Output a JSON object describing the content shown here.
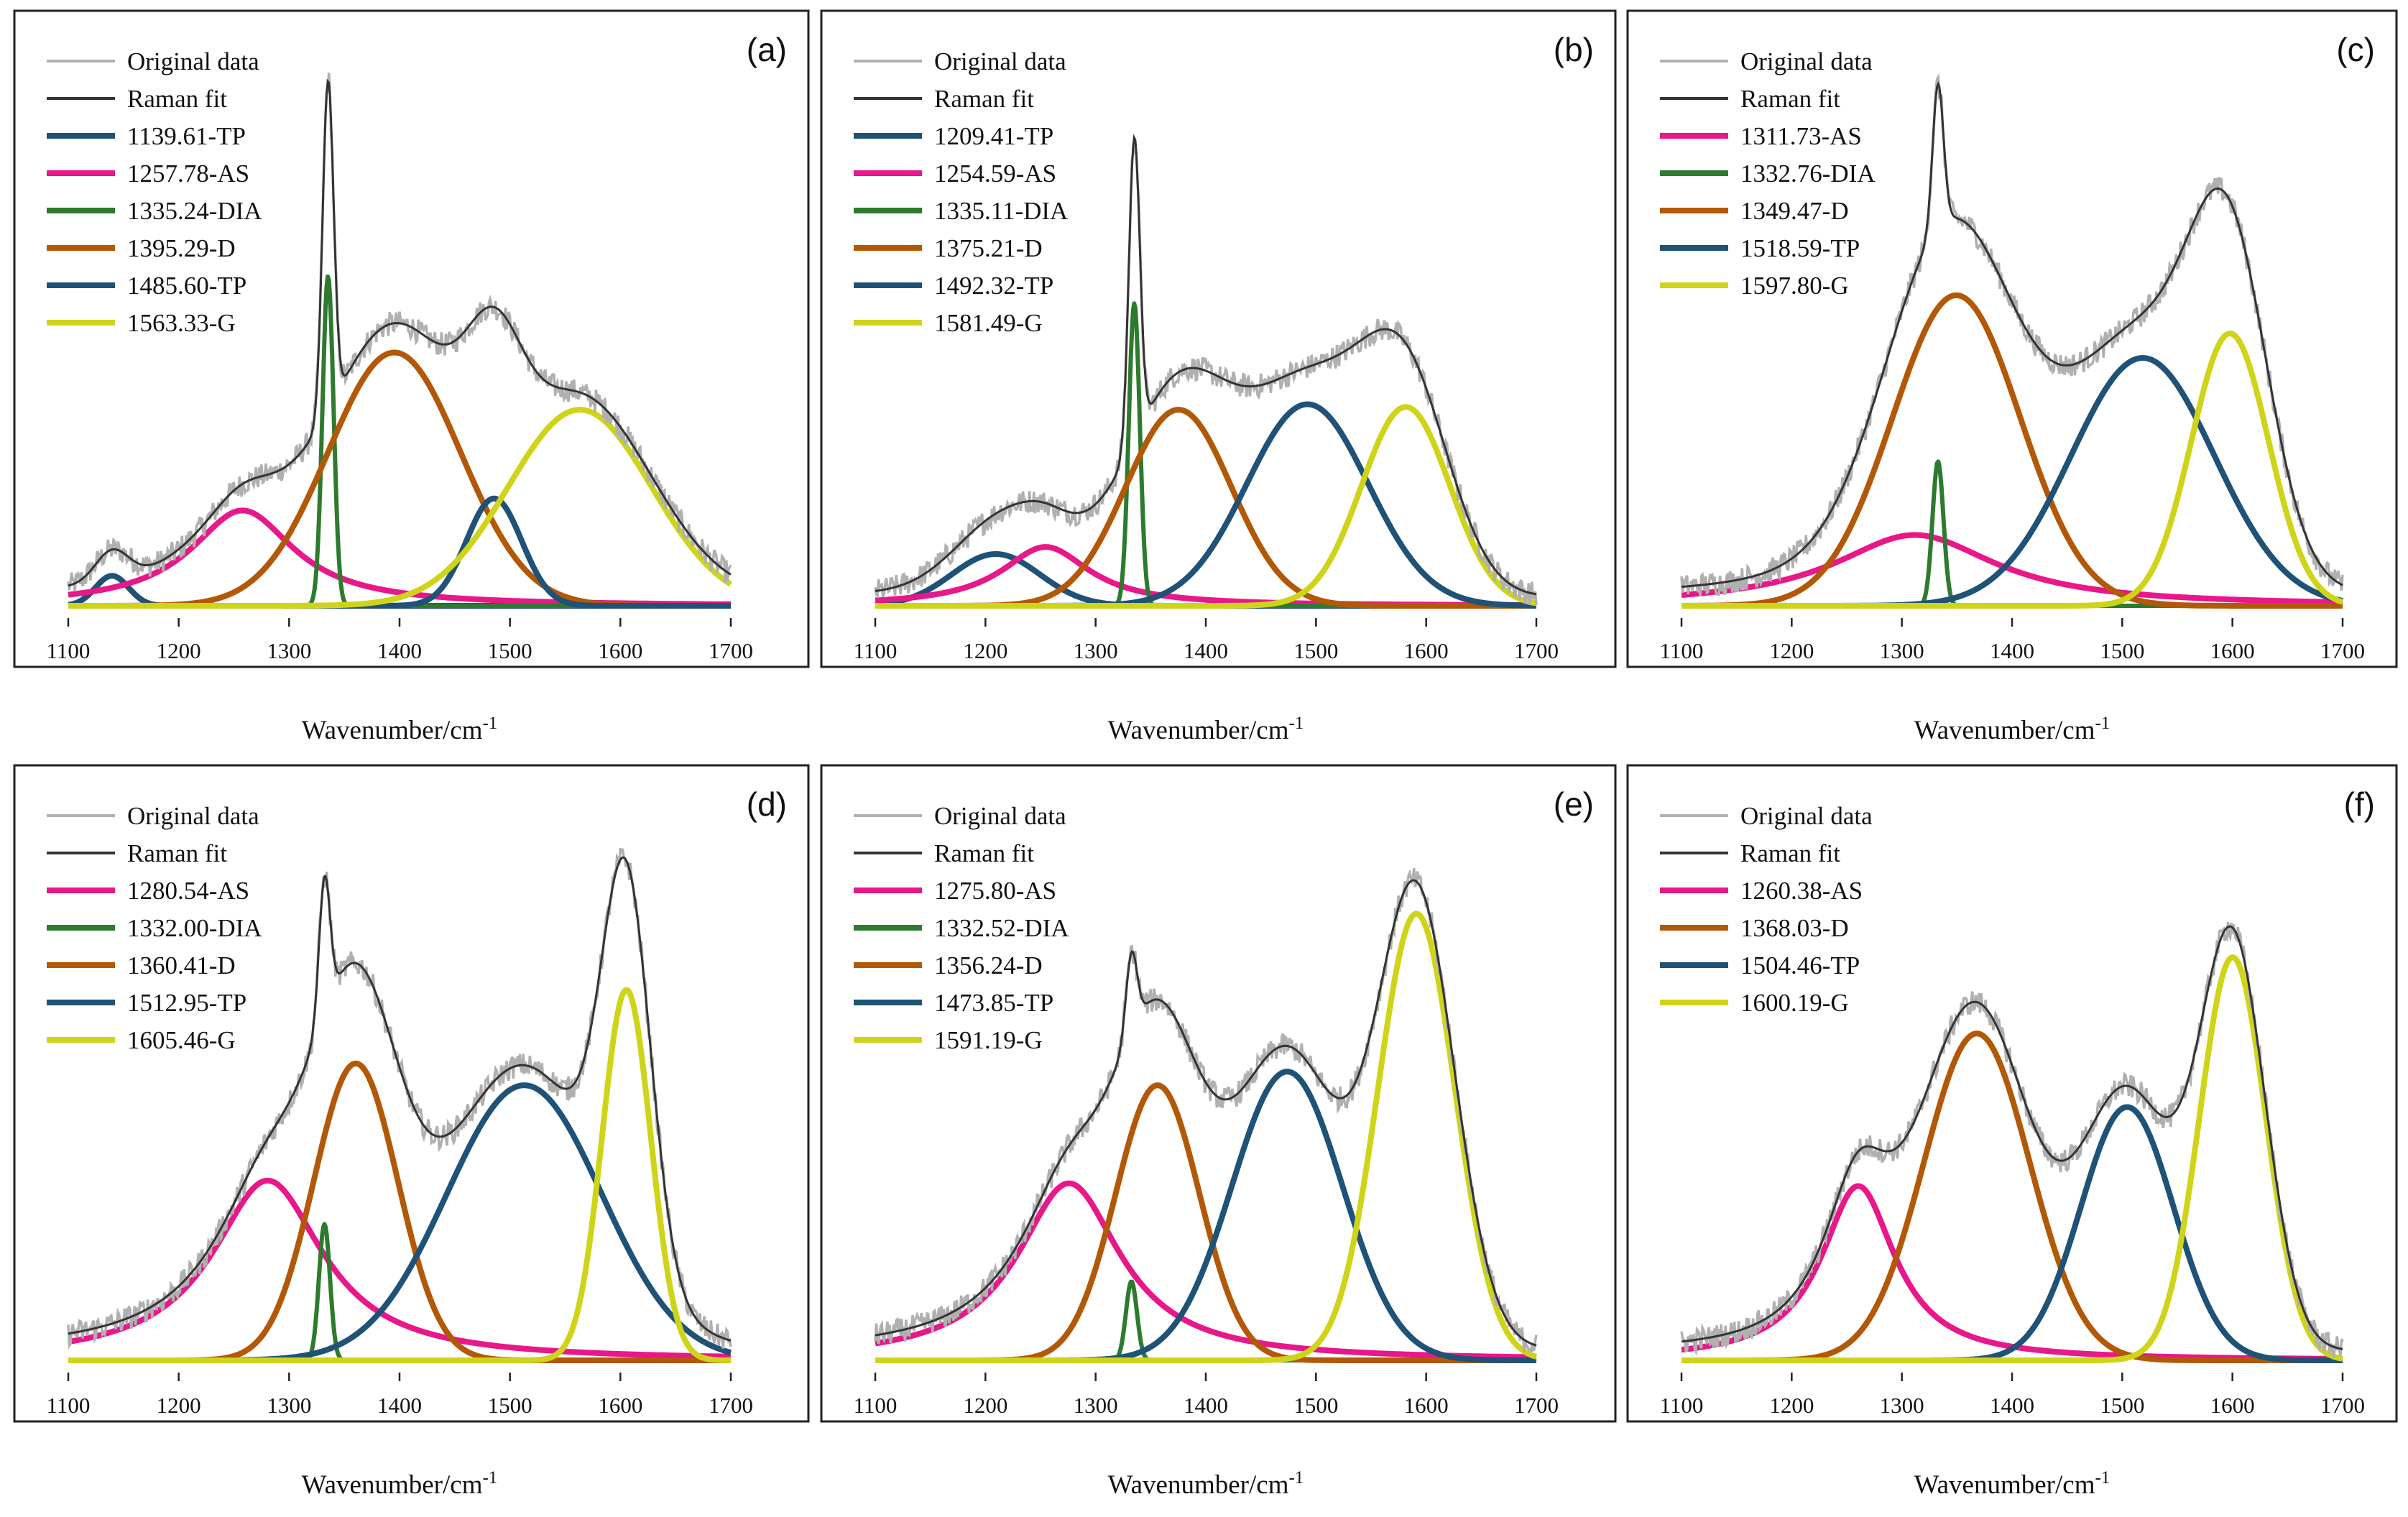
{
  "figure": {
    "xlabel_base": "Wavenumber/cm",
    "xlabel_sup": "-1"
  },
  "legend_common": {
    "original": "Original data",
    "fit": "Raman fit"
  },
  "colors": {
    "original": "#b0b0b0",
    "fit": "#333333",
    "TP": "#1f5276",
    "AS": "#e8178a",
    "DIA": "#2e7a2e",
    "D": "#b35806",
    "G": "#cfd419"
  },
  "chart_data": [
    {
      "label": "(a)",
      "type": "line",
      "xlabel": "Wavenumber/cm-1",
      "xlim": [
        1100,
        1700
      ],
      "ylim": [
        0,
        1
      ],
      "xticks": [
        1100,
        1200,
        1300,
        1400,
        1500,
        1600,
        1700
      ],
      "peaks": [
        {
          "name": "1139.61-TP",
          "kind": "TP",
          "center": 1139.61,
          "height": 0.055,
          "width": 15
        },
        {
          "name": "1257.78-AS",
          "kind": "AS",
          "center": 1257.78,
          "height": 0.175,
          "width": 70
        },
        {
          "name": "1335.24-DIA",
          "kind": "DIA",
          "center": 1335.24,
          "height": 0.605,
          "width": 5
        },
        {
          "name": "1395.29-D",
          "kind": "D",
          "center": 1395.29,
          "height": 0.465,
          "width": 60
        },
        {
          "name": "1485.60-TP",
          "kind": "TP",
          "center": 1485.6,
          "height": 0.197,
          "width": 25
        },
        {
          "name": "1563.33-G",
          "kind": "G",
          "center": 1563.33,
          "height": 0.36,
          "width": 65
        }
      ]
    },
    {
      "label": "(b)",
      "type": "line",
      "xlabel": "Wavenumber/cm-1",
      "xlim": [
        1100,
        1700
      ],
      "ylim": [
        0,
        1
      ],
      "xticks": [
        1100,
        1200,
        1300,
        1400,
        1500,
        1600,
        1700
      ],
      "peaks": [
        {
          "name": "1209.41-TP",
          "kind": "TP",
          "center": 1209.41,
          "height": 0.095,
          "width": 40
        },
        {
          "name": "1254.59-AS",
          "kind": "AS",
          "center": 1254.59,
          "height": 0.108,
          "width": 60
        },
        {
          "name": "1335.11-DIA",
          "kind": "DIA",
          "center": 1335.11,
          "height": 0.555,
          "width": 5
        },
        {
          "name": "1375.21-D",
          "kind": "D",
          "center": 1375.21,
          "height": 0.36,
          "width": 48
        },
        {
          "name": "1492.32-TP",
          "kind": "TP",
          "center": 1492.32,
          "height": 0.37,
          "width": 55
        },
        {
          "name": "1581.49-G",
          "kind": "G",
          "center": 1581.49,
          "height": 0.365,
          "width": 40
        }
      ]
    },
    {
      "label": "(c)",
      "type": "line",
      "xlabel": "Wavenumber/cm-1",
      "xlim": [
        1100,
        1700
      ],
      "ylim": [
        0,
        1
      ],
      "xticks": [
        1100,
        1200,
        1300,
        1400,
        1500,
        1600,
        1700
      ],
      "peaks": [
        {
          "name": "1311.73-AS",
          "kind": "AS",
          "center": 1311.73,
          "height": 0.13,
          "width": 110
        },
        {
          "name": "1332.76-DIA",
          "kind": "DIA",
          "center": 1332.76,
          "height": 0.265,
          "width": 5
        },
        {
          "name": "1349.47-D",
          "kind": "D",
          "center": 1349.47,
          "height": 0.57,
          "width": 58
        },
        {
          "name": "1518.59-TP",
          "kind": "TP",
          "center": 1518.59,
          "height": 0.455,
          "width": 65
        },
        {
          "name": "1597.80-G",
          "kind": "G",
          "center": 1597.8,
          "height": 0.5,
          "width": 35
        }
      ]
    },
    {
      "label": "(d)",
      "type": "line",
      "xlabel": "Wavenumber/cm-1",
      "xlim": [
        1100,
        1700
      ],
      "ylim": [
        0,
        1
      ],
      "xticks": [
        1100,
        1200,
        1300,
        1400,
        1500,
        1600,
        1700
      ],
      "peaks": [
        {
          "name": "1280.54-AS",
          "kind": "AS",
          "center": 1280.54,
          "height": 0.33,
          "width": 75
        },
        {
          "name": "1332.00-DIA",
          "kind": "DIA",
          "center": 1332.0,
          "height": 0.25,
          "width": 5
        },
        {
          "name": "1360.41-D",
          "kind": "D",
          "center": 1360.41,
          "height": 0.545,
          "width": 38
        },
        {
          "name": "1512.95-TP",
          "kind": "TP",
          "center": 1512.95,
          "height": 0.505,
          "width": 70
        },
        {
          "name": "1605.46-G",
          "kind": "G",
          "center": 1605.46,
          "height": 0.68,
          "width": 22
        }
      ]
    },
    {
      "label": "(e)",
      "type": "line",
      "xlabel": "Wavenumber/cm-1",
      "xlim": [
        1100,
        1700
      ],
      "ylim": [
        0,
        1
      ],
      "xticks": [
        1100,
        1200,
        1300,
        1400,
        1500,
        1600,
        1700
      ],
      "peaks": [
        {
          "name": "1275.80-AS",
          "kind": "AS",
          "center": 1275.8,
          "height": 0.325,
          "width": 70
        },
        {
          "name": "1332.52-DIA",
          "kind": "DIA",
          "center": 1332.52,
          "height": 0.145,
          "width": 5
        },
        {
          "name": "1356.24-D",
          "kind": "D",
          "center": 1356.24,
          "height": 0.505,
          "width": 38
        },
        {
          "name": "1473.85-TP",
          "kind": "TP",
          "center": 1473.85,
          "height": 0.53,
          "width": 50
        },
        {
          "name": "1591.19-G",
          "kind": "G",
          "center": 1591.19,
          "height": 0.82,
          "width": 35
        }
      ]
    },
    {
      "label": "(f)",
      "type": "line",
      "xlabel": "Wavenumber/cm-1",
      "xlim": [
        1100,
        1700
      ],
      "ylim": [
        0,
        1
      ],
      "xticks": [
        1100,
        1200,
        1300,
        1400,
        1500,
        1600,
        1700
      ],
      "peaks": [
        {
          "name": "1260.38-AS",
          "kind": "AS",
          "center": 1260.38,
          "height": 0.32,
          "width": 50
        },
        {
          "name": "1368.03-D",
          "kind": "D",
          "center": 1368.03,
          "height": 0.6,
          "width": 48
        },
        {
          "name": "1504.46-TP",
          "kind": "TP",
          "center": 1504.46,
          "height": 0.465,
          "width": 42
        },
        {
          "name": "1600.19-G",
          "kind": "G",
          "center": 1600.19,
          "height": 0.74,
          "width": 30
        }
      ]
    }
  ]
}
